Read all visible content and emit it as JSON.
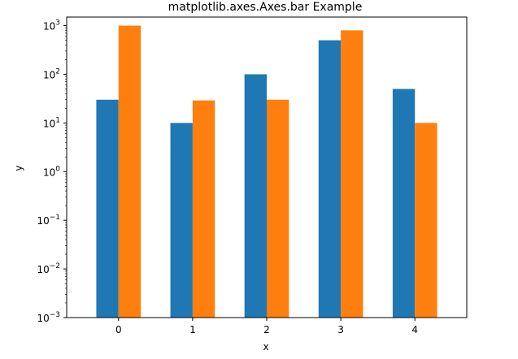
{
  "chart_data": {
    "type": "bar",
    "title": "matplotlib.axes.Axes.bar Example",
    "xlabel": "x",
    "ylabel": "y",
    "yscale": "log",
    "ylim": [
      0.001,
      1500
    ],
    "categories": [
      "0",
      "1",
      "2",
      "3",
      "4"
    ],
    "y_ticks": [
      {
        "value": 0.001,
        "base": "10",
        "exp": "−3"
      },
      {
        "value": 0.01,
        "base": "10",
        "exp": "−2"
      },
      {
        "value": 0.1,
        "base": "10",
        "exp": "−1"
      },
      {
        "value": 1,
        "base": "10",
        "exp": "0"
      },
      {
        "value": 10,
        "base": "10",
        "exp": "1"
      },
      {
        "value": 100,
        "base": "10",
        "exp": "2"
      },
      {
        "value": 1000,
        "base": "10",
        "exp": "3"
      }
    ],
    "series": [
      {
        "color": "#1f77b4",
        "values": [
          30,
          10,
          100,
          500,
          50
        ]
      },
      {
        "color": "#ff7f0e",
        "values": [
          1000,
          29,
          30,
          800,
          10
        ]
      }
    ],
    "grid": false,
    "legend": "none"
  }
}
